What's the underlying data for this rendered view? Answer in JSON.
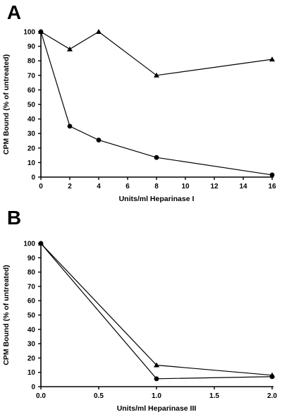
{
  "chart_data": [
    {
      "type": "line",
      "panel_label": "A",
      "xlabel": "Units/ml Heparinase I",
      "ylabel": "CPM Bound (% of untreated)",
      "xlim": [
        0,
        16
      ],
      "ylim": [
        0,
        100
      ],
      "x_ticks": [
        "0",
        "2",
        "4",
        "6",
        "8",
        "10",
        "12",
        "14",
        "16"
      ],
      "y_ticks": [
        "0",
        "10",
        "20",
        "30",
        "40",
        "50",
        "60",
        "70",
        "80",
        "90",
        "100"
      ],
      "series": [
        {
          "marker": "triangle",
          "x": [
            0,
            2,
            4,
            8,
            16
          ],
          "y": [
            100,
            88,
            100,
            70,
            81
          ]
        },
        {
          "marker": "circle",
          "x": [
            0,
            2,
            4,
            8,
            16
          ],
          "y": [
            100,
            35,
            25.5,
            13.5,
            1.5
          ]
        }
      ]
    },
    {
      "type": "line",
      "panel_label": "B",
      "xlabel": "Units/ml Heparinase III",
      "ylabel": "CPM Bound (% of untreated)",
      "xlim": [
        0,
        2
      ],
      "ylim": [
        0,
        100
      ],
      "x_ticks": [
        "0.0",
        "0.5",
        "1.0",
        "1.5",
        "2.0"
      ],
      "y_ticks": [
        "0",
        "10",
        "20",
        "30",
        "40",
        "50",
        "60",
        "70",
        "80",
        "90",
        "100"
      ],
      "series": [
        {
          "marker": "triangle",
          "x": [
            0,
            1,
            2
          ],
          "y": [
            100,
            15,
            8
          ]
        },
        {
          "marker": "circle",
          "x": [
            0,
            1,
            2
          ],
          "y": [
            100,
            5.5,
            7
          ]
        }
      ]
    }
  ]
}
